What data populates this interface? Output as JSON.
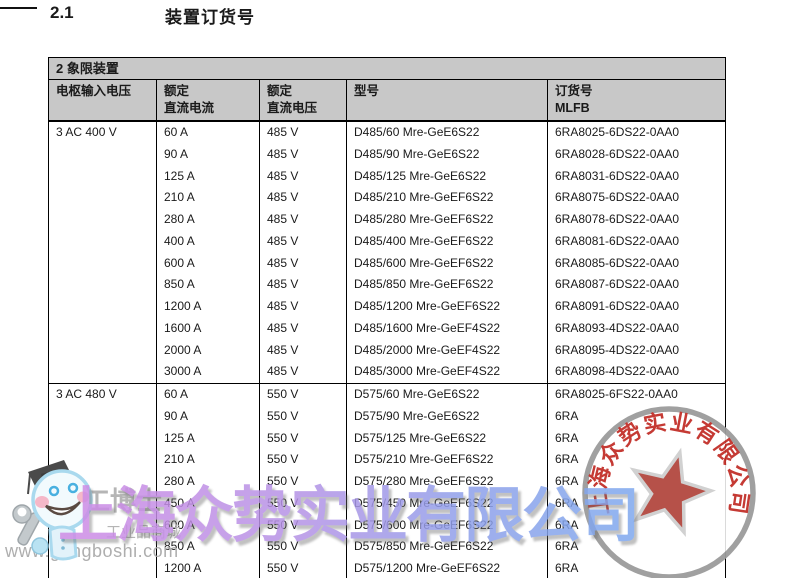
{
  "page": {
    "section_number": "2.1",
    "section_title": "装置订货号"
  },
  "table": {
    "title": "2 象限装置",
    "columns": [
      {
        "line1": "电枢输入电压",
        "line2": ""
      },
      {
        "line1": "额定",
        "line2": "直流电流"
      },
      {
        "line1": "额定",
        "line2": "直流电压"
      },
      {
        "line1": "型号",
        "line2": ""
      },
      {
        "line1": "订货号",
        "line2": "MLFB"
      }
    ],
    "sections": [
      {
        "voltage": "3 AC 400 V",
        "rows": [
          {
            "current": "60 A",
            "dc_voltage": "485 V",
            "model": "D485/60 Mre-GeE6S22",
            "mlfb": "6RA8025-6DS22-0AA0"
          },
          {
            "current": "90 A",
            "dc_voltage": "485 V",
            "model": "D485/90 Mre-GeE6S22",
            "mlfb": "6RA8028-6DS22-0AA0"
          },
          {
            "current": "125 A",
            "dc_voltage": "485 V",
            "model": "D485/125 Mre-GeE6S22",
            "mlfb": "6RA8031-6DS22-0AA0"
          },
          {
            "current": "210 A",
            "dc_voltage": "485 V",
            "model": "D485/210 Mre-GeEF6S22",
            "mlfb": "6RA8075-6DS22-0AA0"
          },
          {
            "current": "280 A",
            "dc_voltage": "485 V",
            "model": "D485/280 Mre-GeEF6S22",
            "mlfb": "6RA8078-6DS22-0AA0"
          },
          {
            "current": "400 A",
            "dc_voltage": "485 V",
            "model": "D485/400 Mre-GeEF6S22",
            "mlfb": "6RA8081-6DS22-0AA0"
          },
          {
            "current": "600 A",
            "dc_voltage": "485 V",
            "model": "D485/600 Mre-GeEF6S22",
            "mlfb": "6RA8085-6DS22-0AA0"
          },
          {
            "current": "850 A",
            "dc_voltage": "485 V",
            "model": "D485/850 Mre-GeEF6S22",
            "mlfb": "6RA8087-6DS22-0AA0"
          },
          {
            "current": "1200 A",
            "dc_voltage": "485 V",
            "model": "D485/1200 Mre-GeEF6S22",
            "mlfb": "6RA8091-6DS22-0AA0"
          },
          {
            "current": "1600 A",
            "dc_voltage": "485 V",
            "model": "D485/1600 Mre-GeEF4S22",
            "mlfb": "6RA8093-4DS22-0AA0"
          },
          {
            "current": "2000 A",
            "dc_voltage": "485 V",
            "model": "D485/2000 Mre-GeEF4S22",
            "mlfb": "6RA8095-4DS22-0AA0"
          },
          {
            "current": "3000 A",
            "dc_voltage": "485 V",
            "model": "D485/3000 Mre-GeEF4S22",
            "mlfb": "6RA8098-4DS22-0AA0"
          }
        ]
      },
      {
        "voltage": "3 AC 480 V",
        "rows": [
          {
            "current": "60 A",
            "dc_voltage": "550 V",
            "model": "D575/60 Mre-GeE6S22",
            "mlfb": "6RA8025-6FS22-0AA0"
          },
          {
            "current": "90 A",
            "dc_voltage": "550 V",
            "model": "D575/90 Mre-GeE6S22",
            "mlfb": "6RA"
          },
          {
            "current": "125 A",
            "dc_voltage": "550 V",
            "model": "D575/125 Mre-GeE6S22",
            "mlfb": "6RA"
          },
          {
            "current": "210 A",
            "dc_voltage": "550 V",
            "model": "D575/210 Mre-GeEF6S22",
            "mlfb": "6RA"
          },
          {
            "current": "280 A",
            "dc_voltage": "550 V",
            "model": "D575/280 Mre-GeEF6S22",
            "mlfb": "6RA"
          },
          {
            "current": "450 A",
            "dc_voltage": "550 V",
            "model": "D575/450 Mre-GeEF6S22",
            "mlfb": "6RA"
          },
          {
            "current": "600 A",
            "dc_voltage": "550 V",
            "model": "D575/600 Mre-GeEF6S22",
            "mlfb": "6RA"
          },
          {
            "current": "850 A",
            "dc_voltage": "550 V",
            "model": "D575/850 Mre-GeEF6S22",
            "mlfb": "6RA"
          },
          {
            "current": "1200 A",
            "dc_voltage": "550 V",
            "model": "D575/1200 Mre-GeEF6S22",
            "mlfb": "6RA"
          }
        ]
      }
    ]
  },
  "watermark": {
    "company_text": "上海众势实业有限公司",
    "color_purple": "#b593e6",
    "color_blue": "#7fa9ee"
  },
  "stamp": {
    "ring_text": "上海众势实业有限公司",
    "text_color": "#c2302a",
    "star_color": "#ad3a32",
    "ring_color": "#9b9b9b"
  },
  "logo": {
    "brand": "工博士",
    "tagline": "工业品商城",
    "url": "www.gongboshi.com"
  },
  "colors": {
    "table_header_gray": "#c8c8c8"
  }
}
